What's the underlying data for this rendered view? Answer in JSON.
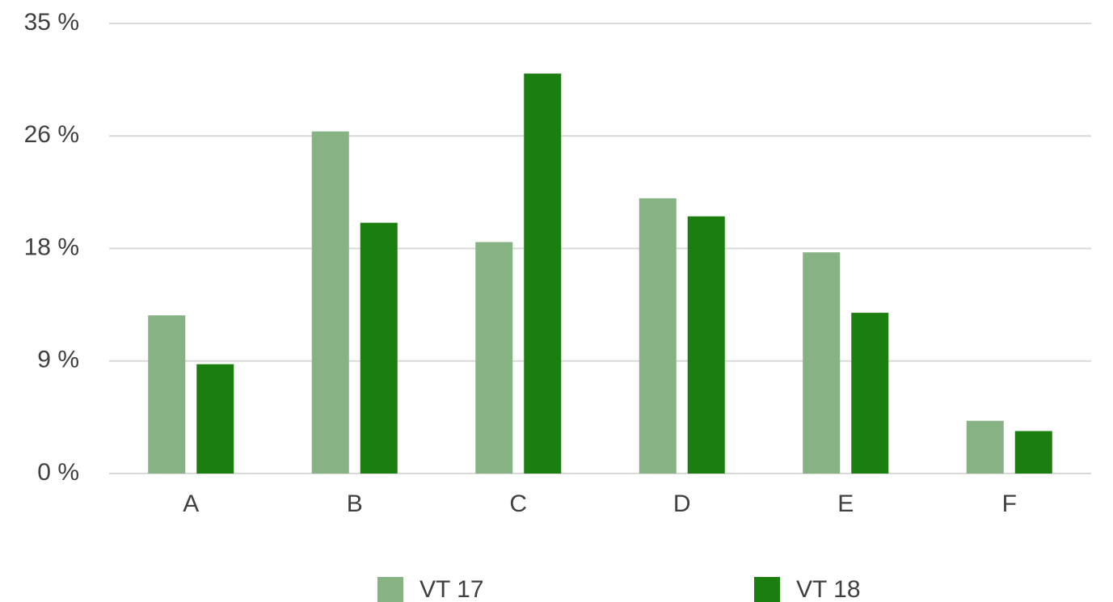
{
  "chart_data": {
    "type": "bar",
    "categories": [
      "A",
      "B",
      "C",
      "D",
      "E",
      "F"
    ],
    "series": [
      {
        "name": "VT 17",
        "color": "#86b284",
        "values": [
          12.3,
          26.6,
          18.0,
          21.4,
          17.2,
          4.1
        ]
      },
      {
        "name": "VT 18",
        "color": "#1a7f0e",
        "values": [
          8.5,
          19.5,
          31.1,
          20.0,
          12.5,
          3.3
        ]
      }
    ],
    "ylim": [
      0,
      35
    ],
    "yticks": [
      {
        "value": 0,
        "label": "0 %"
      },
      {
        "value": 8.75,
        "label": "9 %"
      },
      {
        "value": 17.5,
        "label": "18 %"
      },
      {
        "value": 26.25,
        "label": "26 %"
      },
      {
        "value": 35,
        "label": "35 %"
      }
    ],
    "grid": true,
    "legend": "bottom"
  }
}
